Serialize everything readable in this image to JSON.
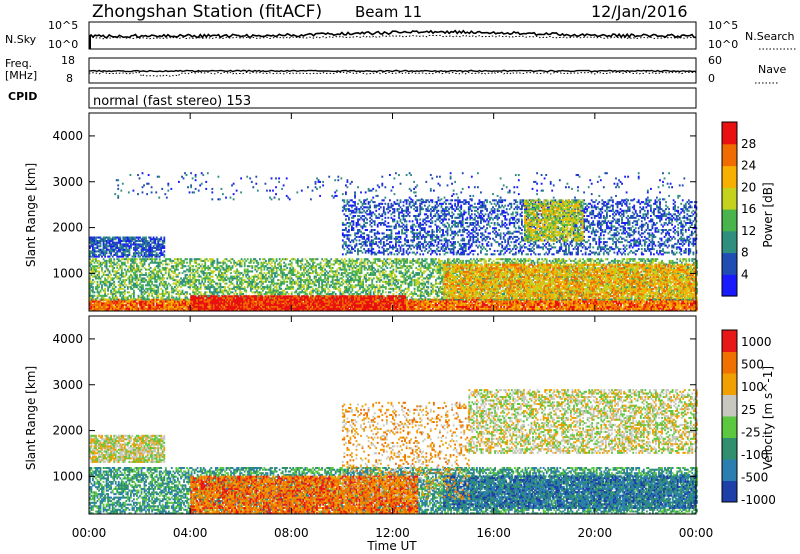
{
  "header": {
    "title": "Zhongshan Station (fitACF)",
    "beam": "Beam 11",
    "date": "12/Jan/2016"
  },
  "param_panels": {
    "nsky": {
      "left_label": "N.Sky",
      "right_label": "N.Search",
      "left_ticks": [
        "10^5",
        "10^0"
      ],
      "right_ticks": [
        "10^5",
        "10^0"
      ]
    },
    "freq": {
      "left_label_1": "Freq.",
      "left_label_2": "[MHz]",
      "right_label": "Nave",
      "left_ticks": [
        "18",
        "8"
      ],
      "right_ticks": [
        "60",
        "0"
      ]
    },
    "cpid": {
      "label": "CPID",
      "text": "normal (fast stereo) 153"
    }
  },
  "x_axis": {
    "label": "Time UT",
    "ticks": [
      "00:00",
      "04:00",
      "08:00",
      "12:00",
      "16:00",
      "20:00",
      "00:00"
    ]
  },
  "chart_data": [
    {
      "type": "heatmap",
      "title": "",
      "variable": "Power",
      "xlabel": "Time UT",
      "ylabel": "Slant Range [km]",
      "xlim": [
        0,
        24
      ],
      "ylim": [
        180,
        4500
      ],
      "yticks": [
        "1000",
        "2000",
        "3000",
        "4000"
      ],
      "colorbar": {
        "label": "Power [dB]",
        "ticks": [
          "4",
          "8",
          "12",
          "16",
          "20",
          "24",
          "28"
        ],
        "colors": [
          "#1a1aff",
          "#1f4db3",
          "#2f8f7f",
          "#49b34c",
          "#c4d21e",
          "#f7b000",
          "#f06c00",
          "#e81010"
        ]
      },
      "regions": [
        {
          "t0": 0.0,
          "t1": 24.0,
          "r0": 180,
          "r1": 420,
          "density": 0.95,
          "level": 6
        },
        {
          "t0": 0.0,
          "t1": 24.0,
          "r0": 420,
          "r1": 1300,
          "density": 0.55,
          "level": 3
        },
        {
          "t0": 4.0,
          "t1": 12.5,
          "r0": 180,
          "r1": 500,
          "density": 0.9,
          "level": 7
        },
        {
          "t0": 0.0,
          "t1": 3.0,
          "r0": 1350,
          "r1": 1800,
          "density": 0.75,
          "level": 1
        },
        {
          "t0": 10.0,
          "t1": 24.0,
          "r0": 1400,
          "r1": 2600,
          "density": 0.4,
          "level": 1
        },
        {
          "t0": 17.2,
          "t1": 19.5,
          "r0": 1700,
          "r1": 2600,
          "density": 0.7,
          "level": 4
        },
        {
          "t0": 14.0,
          "t1": 24.0,
          "r0": 450,
          "r1": 1200,
          "density": 0.7,
          "level": 5
        },
        {
          "t0": 1.0,
          "t1": 23.5,
          "r0": 2600,
          "r1": 3200,
          "density": 0.05,
          "level": 1
        }
      ]
    },
    {
      "type": "heatmap",
      "title": "",
      "variable": "Velocity",
      "xlabel": "Time UT",
      "ylabel": "Slant Range [km]",
      "xlim": [
        0,
        24
      ],
      "ylim": [
        180,
        4500
      ],
      "yticks": [
        "1000",
        "2000",
        "3000",
        "4000"
      ],
      "colorbar": {
        "label": "Velocity [m s^-1]",
        "ticks": [
          "1000",
          "500",
          "100",
          "25",
          "-25",
          "-100",
          "-500",
          "-1000"
        ],
        "colors": [
          "#1e3fa8",
          "#2a7fb0",
          "#2f8f6f",
          "#5cc840",
          "#c8c8c0",
          "#f0a000",
          "#f07000",
          "#e81818"
        ]
      },
      "regions": [
        {
          "t0": 0.0,
          "t1": 24.0,
          "r0": 180,
          "r1": 1200,
          "density": 0.6,
          "level": 2
        },
        {
          "t0": 4.0,
          "t1": 13.0,
          "r0": 180,
          "r1": 1000,
          "density": 0.8,
          "level": 6
        },
        {
          "t0": 0.0,
          "t1": 3.0,
          "r0": 1300,
          "r1": 1900,
          "density": 0.8,
          "level": 4
        },
        {
          "t0": 15.0,
          "t1": 24.0,
          "r0": 1500,
          "r1": 2900,
          "density": 0.5,
          "level": 4
        },
        {
          "t0": 14.0,
          "t1": 24.0,
          "r0": 300,
          "r1": 1000,
          "density": 0.75,
          "level": 1
        },
        {
          "t0": 10.0,
          "t1": 15.0,
          "r0": 500,
          "r1": 2600,
          "density": 0.2,
          "level": 5
        }
      ]
    }
  ]
}
